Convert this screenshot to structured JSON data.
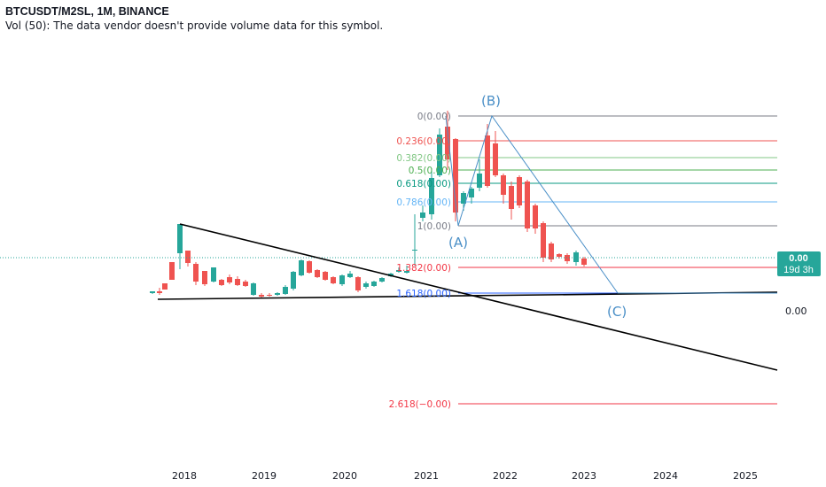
{
  "header": {
    "title": "BTCUSDT/M2SL, 1M, BINANCE",
    "volume_note": "Vol (50): The data vendor doesn't provide volume data for this symbol."
  },
  "price_tag": {
    "value": "0.00",
    "countdown": "19d 3h"
  },
  "right_axis_label": "0.00",
  "colors": {
    "up": "#26a69a",
    "down": "#ef5350",
    "wave": "#4a8fc7",
    "trend": "#000000"
  },
  "chart_data": {
    "type": "candlestick",
    "x_axis": {
      "labels": [
        "2018",
        "2019",
        "2020",
        "2021",
        "2022",
        "2023",
        "2024",
        "2025"
      ]
    },
    "fib_levels": [
      {
        "label": "0(0.00)",
        "color": "#787b86"
      },
      {
        "label": "0.236(0.00)",
        "color": "#ef5350"
      },
      {
        "label": "0.382(0.00)",
        "color": "#81c784"
      },
      {
        "label": "0.5(0.00)",
        "color": "#4caf50"
      },
      {
        "label": "0.618(0.00)",
        "color": "#089981"
      },
      {
        "label": "0.786(0.00)",
        "color": "#64b5f6"
      },
      {
        "label": "1(0.00)",
        "color": "#787b86"
      },
      {
        "label": "1.382(0.00)",
        "color": "#f23645"
      },
      {
        "label": "1.618(0.00)",
        "color": "#2962ff"
      },
      {
        "label": "2.618(−0.00)",
        "color": "#f23645"
      }
    ],
    "waves": [
      "(A)",
      "(B)",
      "(C)"
    ]
  }
}
